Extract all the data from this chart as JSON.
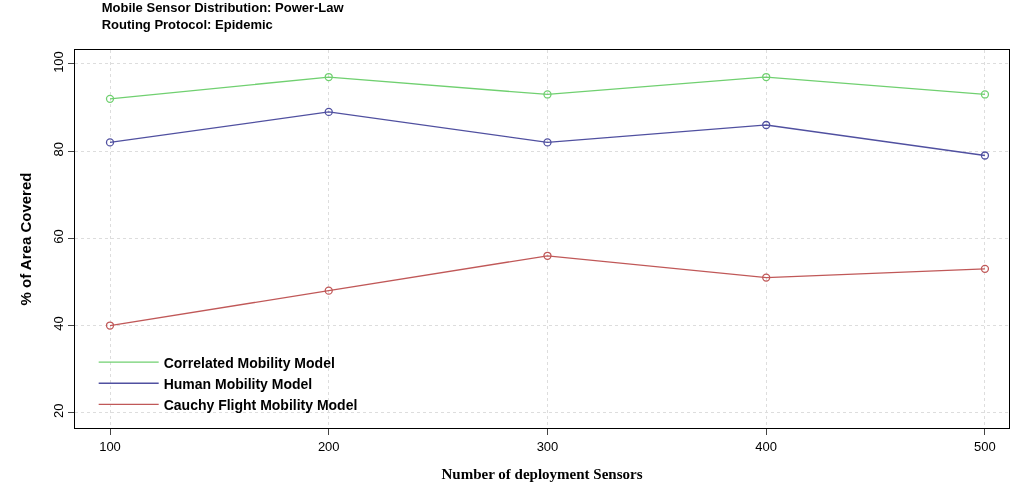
{
  "chart_data": {
    "type": "line",
    "title": "Mobile Sensor Distribution: Power-Law\nRouting Protocol: Epidemic",
    "xlabel": "Number of deployment Sensors",
    "ylabel": "% of Area Covered",
    "x": [
      100,
      200,
      300,
      400,
      500
    ],
    "series": [
      {
        "name": "Correlated Mobility Model",
        "color": "#70d070",
        "values": [
          92,
          97,
          93,
          97,
          93
        ]
      },
      {
        "name": "Human Mobility Model",
        "color": "#5050a0",
        "values": [
          82,
          89,
          82,
          86,
          79
        ]
      },
      {
        "name": "Cauchy Flight Mobility Model",
        "color": "#c05858",
        "values": [
          40,
          48,
          56,
          51,
          53
        ]
      }
    ],
    "xlim": [
      84,
      511
    ],
    "xticks": [
      100,
      200,
      300,
      400,
      500
    ],
    "ylim": [
      16.5,
      103.2
    ],
    "yticks": [
      20,
      40,
      60,
      80,
      100
    ],
    "grid": true,
    "legend": "bottom left",
    "marker": "circle",
    "line_style": "solid"
  }
}
